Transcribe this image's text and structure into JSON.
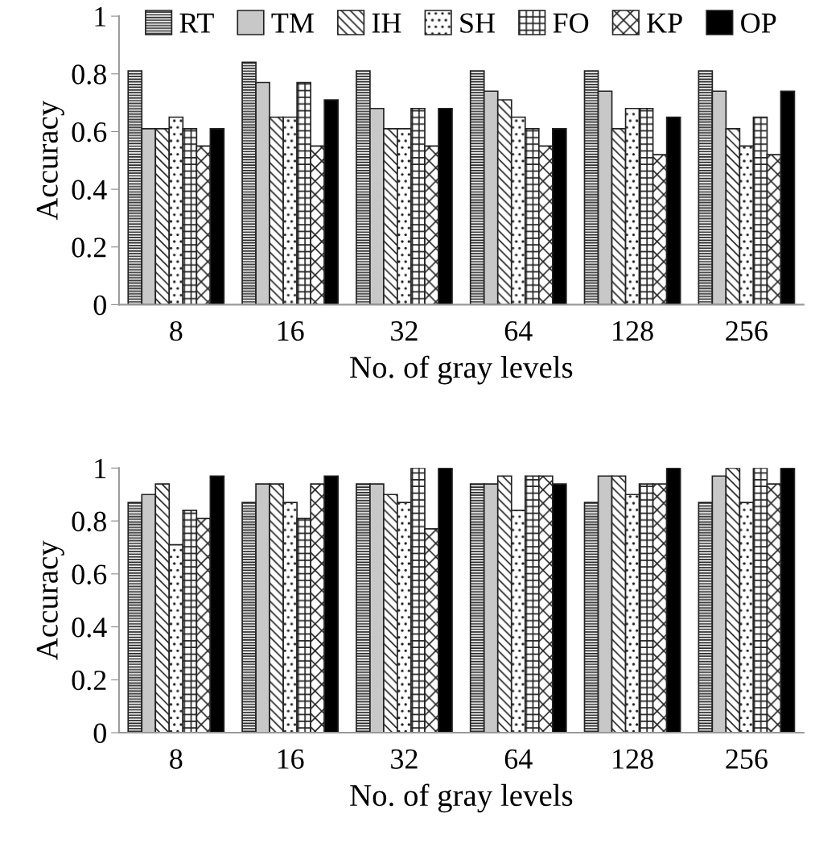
{
  "chart_data": [
    {
      "type": "bar",
      "xlabel": "No. of gray levels",
      "ylabel": "Accuracy",
      "categories": [
        "8",
        "16",
        "32",
        "64",
        "128",
        "256"
      ],
      "ylim": [
        0,
        1
      ],
      "yticks": [
        {
          "value": 0,
          "label": "0"
        },
        {
          "value": 0.2,
          "label": "0.2"
        },
        {
          "value": 0.4,
          "label": "0.4"
        },
        {
          "value": 0.6,
          "label": "0.6"
        },
        {
          "value": 0.8,
          "label": "0.8"
        },
        {
          "value": 1,
          "label": "1"
        }
      ],
      "grid": false,
      "legend": "top",
      "series": [
        {
          "name": "RT",
          "color": "#222222",
          "values": [
            0.81,
            0.84,
            0.81,
            0.81,
            0.81,
            0.81
          ]
        },
        {
          "name": "TM",
          "color": "#c8c8c8",
          "values": [
            0.61,
            0.77,
            0.68,
            0.74,
            0.74,
            0.74
          ]
        },
        {
          "name": "IH",
          "color": "#222222",
          "values": [
            0.61,
            0.65,
            0.61,
            0.71,
            0.61,
            0.61
          ]
        },
        {
          "name": "SH",
          "color": "#222222",
          "values": [
            0.65,
            0.65,
            0.61,
            0.65,
            0.68,
            0.55
          ]
        },
        {
          "name": "FO",
          "color": "#222222",
          "values": [
            0.61,
            0.77,
            0.68,
            0.61,
            0.68,
            0.65
          ]
        },
        {
          "name": "KP",
          "color": "#222222",
          "values": [
            0.55,
            0.55,
            0.55,
            0.55,
            0.52,
            0.52
          ]
        },
        {
          "name": "OP",
          "color": "#000000",
          "values": [
            0.61,
            0.71,
            0.68,
            0.61,
            0.65,
            0.74
          ]
        }
      ]
    },
    {
      "type": "bar",
      "xlabel": "No. of gray levels",
      "ylabel": "Accuracy",
      "categories": [
        "8",
        "16",
        "32",
        "64",
        "128",
        "256"
      ],
      "ylim": [
        0,
        1
      ],
      "yticks": [
        {
          "value": 0,
          "label": "0"
        },
        {
          "value": 0.2,
          "label": "0.2"
        },
        {
          "value": 0.4,
          "label": "0.4"
        },
        {
          "value": 0.6,
          "label": "0.6"
        },
        {
          "value": 0.8,
          "label": "0.8"
        },
        {
          "value": 1,
          "label": "1"
        }
      ],
      "grid": false,
      "series": [
        {
          "color": "#222222",
          "values": [
            0.87,
            0.87,
            0.94,
            0.94,
            0.87,
            0.87
          ]
        },
        {
          "color": "#c8c8c8",
          "values": [
            0.9,
            0.94,
            0.94,
            0.94,
            0.97,
            0.97
          ]
        },
        {
          "color": "#222222",
          "values": [
            0.94,
            0.94,
            0.9,
            0.97,
            0.97,
            1.0
          ]
        },
        {
          "color": "#222222",
          "values": [
            0.71,
            0.87,
            0.87,
            0.84,
            0.9,
            0.87
          ]
        },
        {
          "color": "#222222",
          "values": [
            0.84,
            0.81,
            1.0,
            0.97,
            0.94,
            1.0
          ]
        },
        {
          "color": "#222222",
          "values": [
            0.81,
            0.94,
            0.77,
            0.97,
            0.94,
            0.94
          ]
        },
        {
          "color": "#000000",
          "values": [
            0.97,
            0.97,
            1.0,
            0.94,
            1.0,
            1.0
          ]
        }
      ]
    }
  ]
}
